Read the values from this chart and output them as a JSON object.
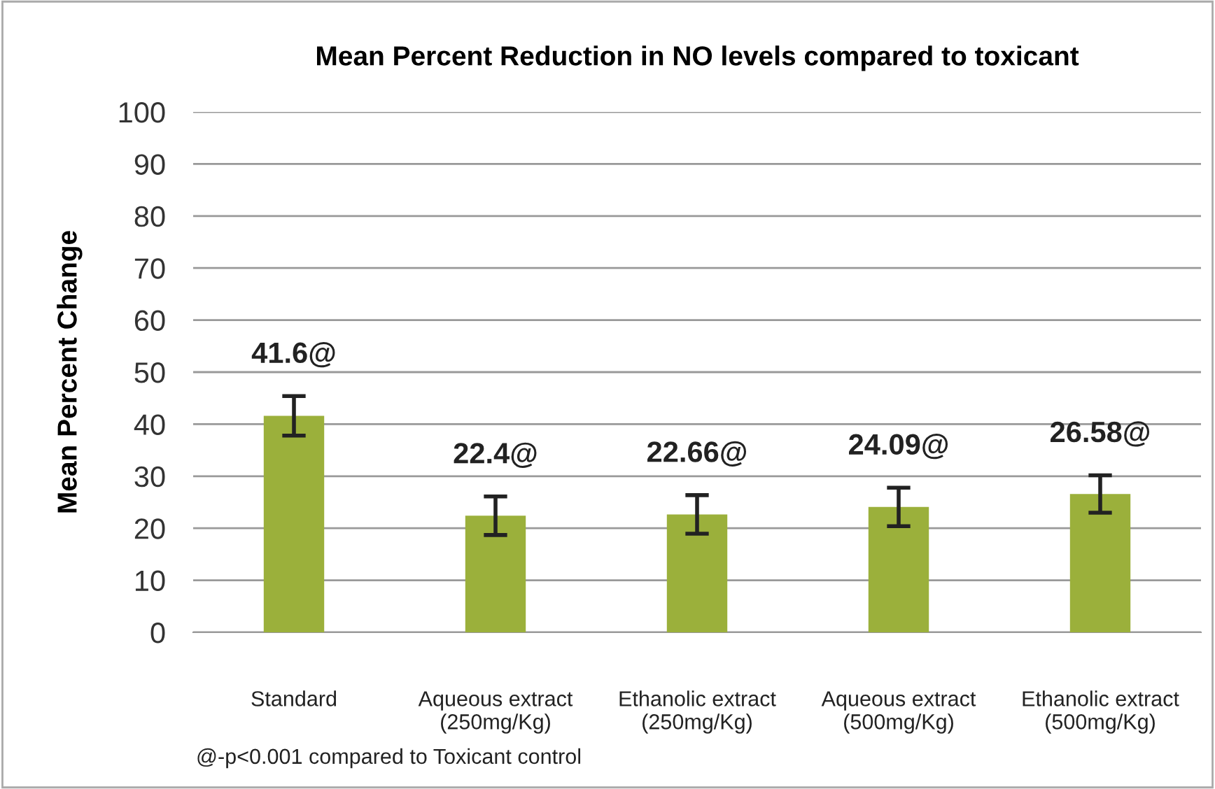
{
  "chart_data": {
    "type": "bar",
    "title": "Mean Percent Reduction in NO levels compared to toxicant",
    "ylabel": "Mean Percent Change",
    "categories": [
      "Standard",
      "Aqueous extract\n(250mg/Kg)",
      "Ethanolic extract\n(250mg/Kg)",
      "Aqueous extract\n(500mg/Kg)",
      "Ethanolic extract\n(500mg/Kg)"
    ],
    "values": [
      41.6,
      22.4,
      22.66,
      24.09,
      26.58
    ],
    "color": "#9bb03b",
    "errors": [
      3.8,
      3.7,
      3.7,
      3.7,
      3.6
    ],
    "value_labels": [
      "41.6@",
      "22.4@",
      "22.66@",
      "24.09@",
      "26.58@"
    ],
    "ylim": [
      0,
      100
    ],
    "yticks": [
      0,
      10,
      20,
      30,
      40,
      50,
      60,
      70,
      80,
      90,
      100
    ],
    "grid": "y",
    "annotations": [
      "@-p<0.001 compared to Toxicant control"
    ]
  }
}
